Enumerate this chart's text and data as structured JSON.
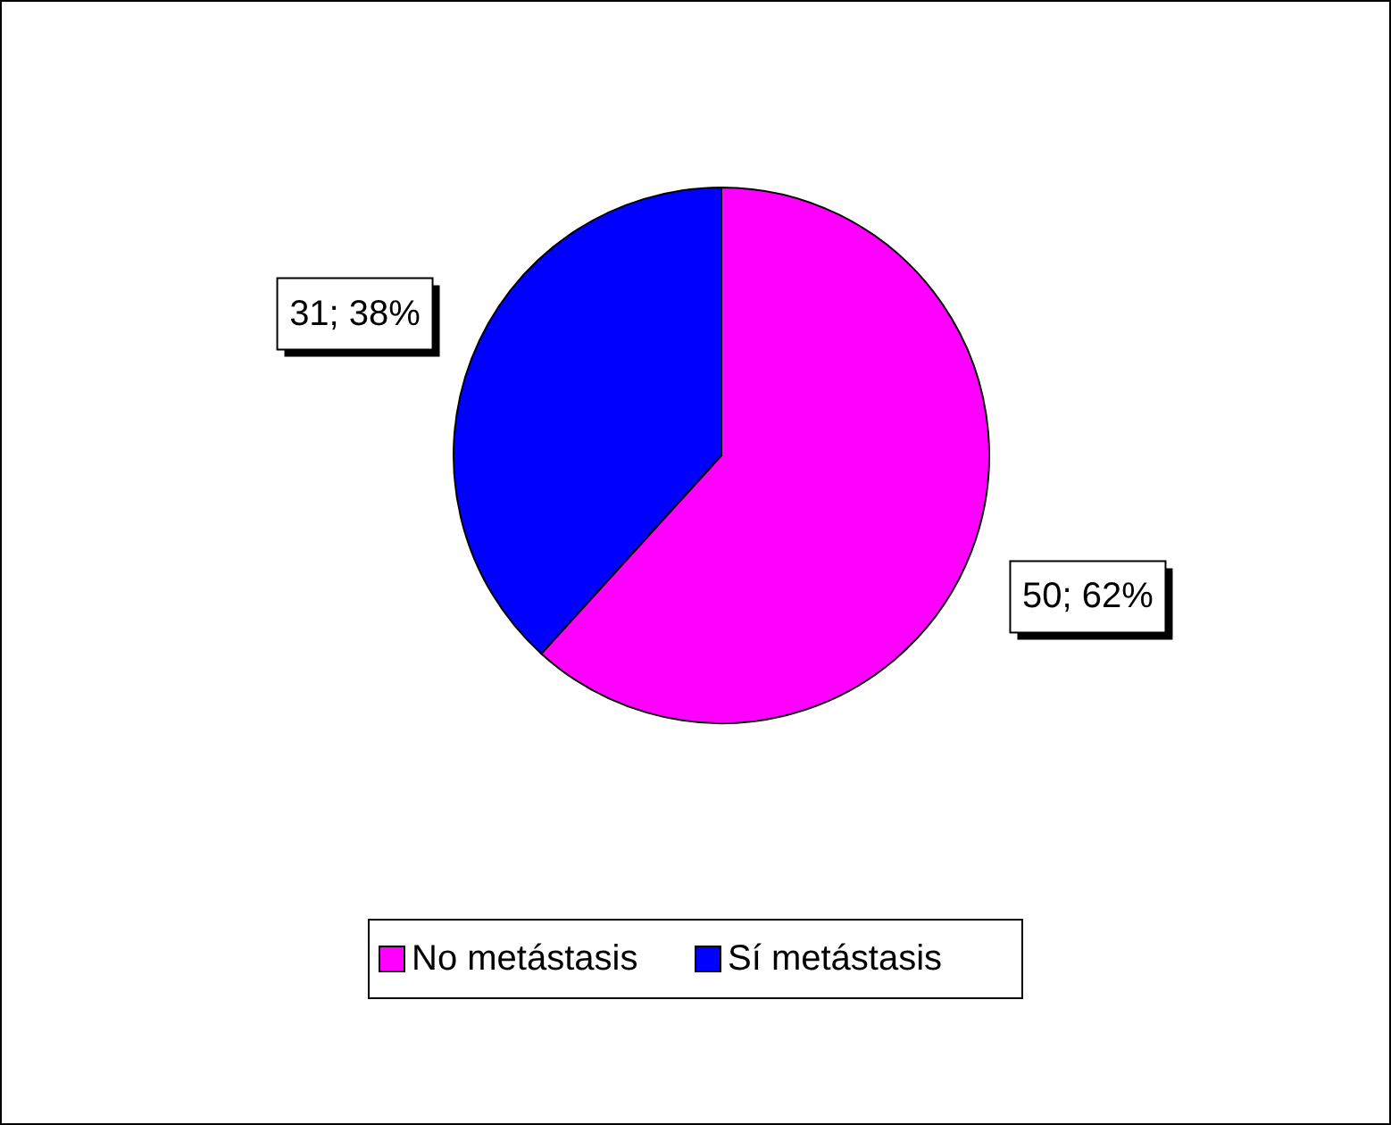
{
  "chart_data": {
    "type": "pie",
    "categories": [
      "No metástasis",
      "Sí metástasis"
    ],
    "values": [
      50,
      31
    ],
    "colors": [
      "#ff00ff",
      "#0000ff"
    ],
    "value_labels": [
      "50; 62%",
      "31; 38%"
    ],
    "legend": "bottom"
  }
}
